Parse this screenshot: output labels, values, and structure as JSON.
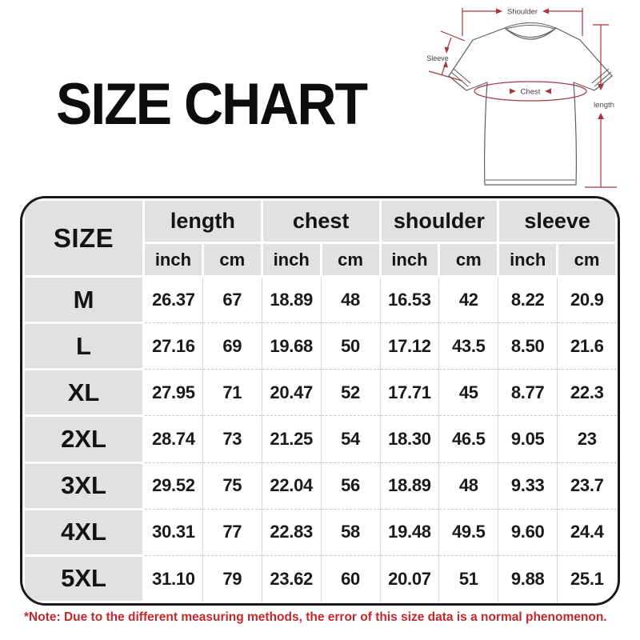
{
  "title": "SIZE CHART",
  "note": "*Note: Due to the different measuring methods, the error of this size data is a normal phenomenon.",
  "colors": {
    "table_header_bg": "#e1e1e1",
    "table_border": "#191919",
    "measure_line_red": "#a8363c",
    "note_red": "#c4272b",
    "shirt_outline": "#5f5f5f"
  },
  "diagram": {
    "labels": {
      "shoulder": "Shoulder",
      "sleeve": "Sleeve",
      "chest": "Chest",
      "length": "length"
    }
  },
  "chart_data": {
    "type": "table",
    "title": "SIZE CHART",
    "row_header": "SIZE",
    "column_groups": [
      {
        "label": "length",
        "units": [
          "inch",
          "cm"
        ]
      },
      {
        "label": "chest",
        "units": [
          "inch",
          "cm"
        ]
      },
      {
        "label": "shoulder",
        "units": [
          "inch",
          "cm"
        ]
      },
      {
        "label": "sleeve",
        "units": [
          "inch",
          "cm"
        ]
      }
    ],
    "rows": [
      {
        "size": "M",
        "values": [
          "26.37",
          "67",
          "18.89",
          "48",
          "16.53",
          "42",
          "8.22",
          "20.9"
        ]
      },
      {
        "size": "L",
        "values": [
          "27.16",
          "69",
          "19.68",
          "50",
          "17.12",
          "43.5",
          "8.50",
          "21.6"
        ]
      },
      {
        "size": "XL",
        "values": [
          "27.95",
          "71",
          "20.47",
          "52",
          "17.71",
          "45",
          "8.77",
          "22.3"
        ]
      },
      {
        "size": "2XL",
        "values": [
          "28.74",
          "73",
          "21.25",
          "54",
          "18.30",
          "46.5",
          "9.05",
          "23"
        ]
      },
      {
        "size": "3XL",
        "values": [
          "29.52",
          "75",
          "22.04",
          "56",
          "18.89",
          "48",
          "9.33",
          "23.7"
        ]
      },
      {
        "size": "4XL",
        "values": [
          "30.31",
          "77",
          "22.83",
          "58",
          "19.48",
          "49.5",
          "9.60",
          "24.4"
        ]
      },
      {
        "size": "5XL",
        "values": [
          "31.10",
          "79",
          "23.62",
          "60",
          "20.07",
          "51",
          "9.88",
          "25.1"
        ]
      }
    ]
  }
}
